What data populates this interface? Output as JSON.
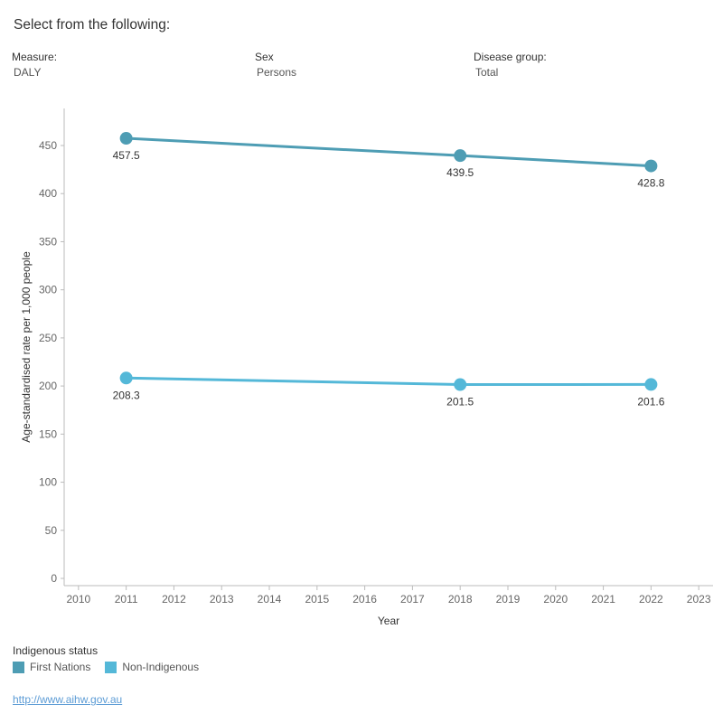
{
  "header": {
    "title": "Select from the following:"
  },
  "filters": {
    "measure": {
      "label": "Measure:",
      "value": "DALY"
    },
    "sex": {
      "label": "Sex",
      "value": "Persons"
    },
    "disease_group": {
      "label": "Disease group:",
      "value": "Total"
    }
  },
  "legend": {
    "title": "Indigenous status",
    "items": [
      {
        "label": "First Nations",
        "color": "#4e9db4"
      },
      {
        "label": "Non-Indigenous",
        "color": "#54b8d8"
      }
    ]
  },
  "source": {
    "link_text": "http://www.aihw.gov.au"
  },
  "chart_data": {
    "type": "line",
    "xlabel": "Year",
    "ylabel": "Age-standardised rate per 1,000 people",
    "xlim": [
      2010,
      2023
    ],
    "ylim": [
      0,
      450
    ],
    "x_ticks": [
      "2010",
      "2011",
      "2012",
      "2013",
      "2014",
      "2015",
      "2016",
      "2017",
      "2018",
      "2019",
      "2020",
      "2021",
      "2022",
      "2023"
    ],
    "y_ticks": [
      "0",
      "50",
      "100",
      "150",
      "200",
      "250",
      "300",
      "350",
      "400",
      "450"
    ],
    "series": [
      {
        "name": "First Nations",
        "color": "#4e9db4",
        "x": [
          2011,
          2018,
          2022
        ],
        "y": [
          457.5,
          439.5,
          428.8
        ],
        "labels": [
          "457.5",
          "439.5",
          "428.8"
        ]
      },
      {
        "name": "Non-Indigenous",
        "color": "#54b8d8",
        "x": [
          2011,
          2018,
          2022
        ],
        "y": [
          208.3,
          201.5,
          201.6
        ],
        "labels": [
          "208.3",
          "201.5",
          "201.6"
        ]
      }
    ]
  }
}
